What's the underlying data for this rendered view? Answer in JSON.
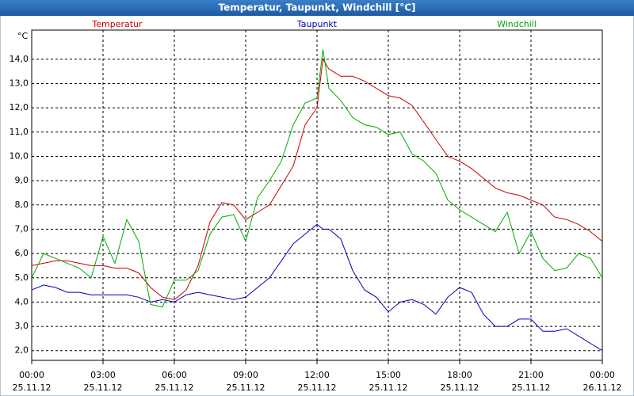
{
  "chart_data": {
    "type": "line",
    "title": "Temperatur, Taupunkt, Windchill [°C]",
    "y_unit": "°C",
    "x": [
      0,
      0.5,
      1,
      1.5,
      2,
      2.5,
      3,
      3.5,
      4,
      4.5,
      5,
      5.5,
      6,
      6.5,
      7,
      7.5,
      8,
      8.5,
      9,
      9.5,
      10,
      10.5,
      11,
      11.5,
      12,
      12.25,
      12.5,
      13,
      13.5,
      14,
      14.5,
      15,
      15.5,
      16,
      16.5,
      17,
      17.5,
      18,
      18.5,
      19,
      19.5,
      20,
      20.5,
      21,
      21.5,
      22,
      22.5,
      23,
      23.5,
      24
    ],
    "series": [
      {
        "name": "Temperatur",
        "color": "#cc0000",
        "values": [
          5.5,
          5.6,
          5.7,
          5.7,
          5.6,
          5.5,
          5.5,
          5.4,
          5.4,
          5.2,
          4.6,
          4.2,
          4.1,
          4.5,
          5.5,
          7.3,
          8.1,
          8.0,
          7.4,
          7.7,
          8.0,
          8.8,
          9.6,
          11.3,
          12.0,
          14.0,
          13.6,
          13.3,
          13.3,
          13.1,
          12.8,
          12.5,
          12.4,
          12.1,
          11.4,
          10.7,
          10.0,
          9.8,
          9.5,
          9.1,
          8.7,
          8.5,
          8.4,
          8.2,
          8.0,
          7.5,
          7.4,
          7.2,
          6.9,
          6.5
        ]
      },
      {
        "name": "Taupunkt",
        "color": "#0000bb",
        "values": [
          4.5,
          4.7,
          4.6,
          4.4,
          4.4,
          4.3,
          4.3,
          4.3,
          4.3,
          4.2,
          4.0,
          4.1,
          4.0,
          4.3,
          4.4,
          4.3,
          4.2,
          4.1,
          4.2,
          4.6,
          5.0,
          5.7,
          6.4,
          6.8,
          7.2,
          7.0,
          7.0,
          6.6,
          5.3,
          4.5,
          4.2,
          3.6,
          4.0,
          4.1,
          3.9,
          3.5,
          4.2,
          4.6,
          4.4,
          3.5,
          3.0,
          3.0,
          3.3,
          3.3,
          2.8,
          2.8,
          2.9,
          2.6,
          2.3,
          2.0
        ]
      },
      {
        "name": "Windchill",
        "color": "#00aa00",
        "values": [
          5.0,
          6.0,
          5.8,
          5.6,
          5.4,
          5.0,
          6.7,
          5.6,
          7.4,
          6.5,
          3.9,
          3.8,
          4.9,
          4.9,
          5.3,
          6.8,
          7.5,
          7.6,
          6.5,
          8.3,
          9.0,
          9.8,
          11.3,
          12.2,
          12.4,
          14.4,
          12.8,
          12.3,
          11.6,
          11.3,
          11.2,
          10.9,
          11.0,
          10.1,
          9.8,
          9.3,
          8.2,
          7.8,
          7.5,
          7.2,
          6.9,
          7.7,
          6.0,
          6.9,
          5.8,
          5.3,
          5.4,
          6.0,
          5.8,
          5.0
        ]
      }
    ],
    "xlim": [
      0,
      24
    ],
    "ylim": [
      1.6,
      15.2
    ],
    "xticks": [
      {
        "value": 0,
        "label": "00:00",
        "date": "25.11.12"
      },
      {
        "value": 3,
        "label": "03:00",
        "date": "25.11.12"
      },
      {
        "value": 6,
        "label": "06:00",
        "date": "25.11.12"
      },
      {
        "value": 9,
        "label": "09:00",
        "date": "25.11.12"
      },
      {
        "value": 12,
        "label": "12:00",
        "date": "25.11.12"
      },
      {
        "value": 15,
        "label": "15:00",
        "date": "25.11.12"
      },
      {
        "value": 18,
        "label": "18:00",
        "date": "25.11.12"
      },
      {
        "value": 21,
        "label": "21:00",
        "date": "25.11.12"
      },
      {
        "value": 24,
        "label": "00:00",
        "date": "26.11.12"
      }
    ],
    "yticks": [
      {
        "value": 2,
        "label": "2,0"
      },
      {
        "value": 3,
        "label": "3,0"
      },
      {
        "value": 4,
        "label": "4,0"
      },
      {
        "value": 5,
        "label": "5,0"
      },
      {
        "value": 6,
        "label": "6,0"
      },
      {
        "value": 7,
        "label": "7,0"
      },
      {
        "value": 8,
        "label": "8,0"
      },
      {
        "value": 9,
        "label": "9,0"
      },
      {
        "value": 10,
        "label": "10,0"
      },
      {
        "value": 11,
        "label": "11,0"
      },
      {
        "value": 12,
        "label": "12,0"
      },
      {
        "value": 13,
        "label": "13,0"
      },
      {
        "value": 14,
        "label": "14,0"
      }
    ],
    "grid": true
  }
}
